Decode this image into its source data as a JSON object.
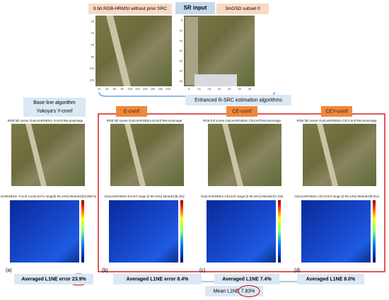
{
  "top": {
    "left_label": "8 bit RGB-HRMSI without prior SRC",
    "center_label": "SR input",
    "right_label": "3mGSD subset 0",
    "left_xticks": [
      "20",
      "40",
      "60",
      "80",
      "100",
      "120",
      "140",
      "160",
      "180",
      "200"
    ],
    "left_yticks": [
      "20",
      "40",
      "60",
      "80",
      "100",
      "120"
    ],
    "right_xticks": [
      "5",
      "10",
      "15",
      "20",
      "25",
      "30",
      "35"
    ],
    "right_yticks": [
      "5",
      "10",
      "15",
      "20",
      "25",
      "30",
      "35"
    ]
  },
  "enhanced_label": "Enhanced R-SRC estimation algorithms",
  "baseline_label": [
    "Base line algorithm",
    "Yokoya's Y-cnmf"
  ],
  "panels": [
    {
      "method": null,
      "title": "RGB full scene OutcomRGBSm Ycnmf-ReconsImage",
      "err_title": "OutcomRGBSm Ycnmf 1Area Err% range[0 95.44%] MeanErr[23.884%]",
      "letter": "(a)",
      "result": "Averaged L1NE error 23.9%"
    },
    {
      "method": "E-cnmf",
      "title": "RGB full scene OutcomRGBSm Ecnmf-ReconsImage",
      "err_title": "OutcomRGBSm Ecnmf range [0 95.44%] MeanErr[8.4%]",
      "letter": "(b)",
      "result": "Averaged L1NE error 8.4%"
    },
    {
      "method": "CE-cnmf",
      "title": "RGB full scene OutcomRGBSm CEcnmf-ReconsImage",
      "err_title": "OutcomRGBSm CEcnmf range [0 95.44%] MeanErr[7.4%]",
      "letter": "(c)",
      "result": "Averaged L1NE 7.4%"
    },
    {
      "method": "CEY-cnmf",
      "title": "RGB full scene OutcomRGBSm CEYcnmf-ReconsImage",
      "err_title": "OutcomRGBSm CEYcnmf range [0 95.44%] MeanErr[8.0%]",
      "letter": "(d)",
      "result": "Averaged L1NE 8.0%"
    }
  ],
  "mean_label": "Mean L1NE 7.93%"
}
